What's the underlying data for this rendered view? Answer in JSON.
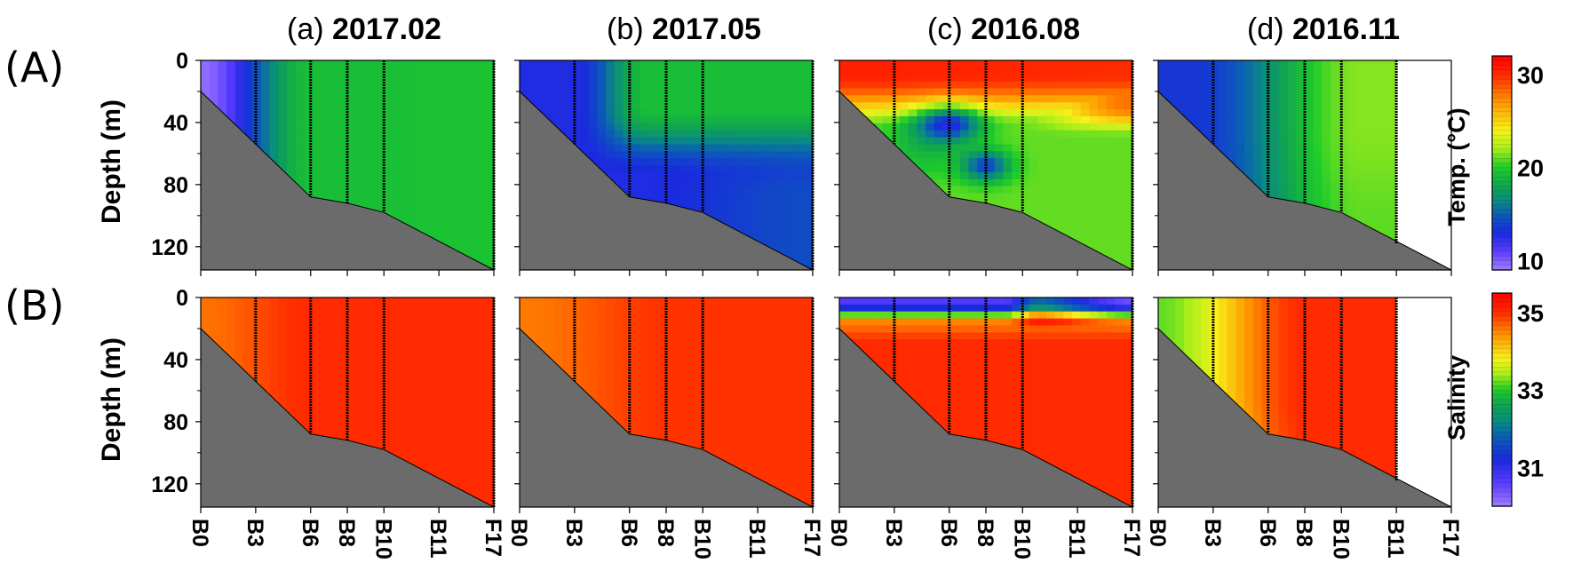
{
  "row_labels": [
    "(A)",
    "(B)"
  ],
  "panel_titles": [
    {
      "prefix": "(a) ",
      "date": "2017.02"
    },
    {
      "prefix": "(b) ",
      "date": "2017.05"
    },
    {
      "prefix": "(c) ",
      "date": "2016.08"
    },
    {
      "prefix": "(d) ",
      "date": "2016.11"
    }
  ],
  "chart_data": {
    "type": "heatmap",
    "ylabel": "Depth (m)",
    "ylim": [
      0,
      135
    ],
    "yticks": [
      0,
      40,
      80,
      120
    ],
    "y_inverted": true,
    "stations": [
      "B0",
      "B3",
      "B6",
      "B8",
      "B10",
      "B11",
      "F17"
    ],
    "station_index": [
      0,
      3,
      6,
      8,
      10,
      13,
      16
    ],
    "bottom_depth_profile": [
      {
        "x": 0,
        "depth": 20
      },
      {
        "x": 3,
        "depth": 54
      },
      {
        "x": 6,
        "depth": 88
      },
      {
        "x": 8,
        "depth": 92
      },
      {
        "x": 10,
        "depth": 98
      },
      {
        "x": 16,
        "depth": 138
      }
    ],
    "colorbars": [
      {
        "label": "Temp. (°C)",
        "range": [
          9,
          32
        ],
        "ticks": [
          10,
          20,
          30
        ]
      },
      {
        "label": "Salinity",
        "range": [
          30,
          35.5
        ],
        "ticks": [
          31,
          33,
          35
        ]
      }
    ],
    "panels": [
      {
        "row": "A",
        "variable": "Temp.",
        "period": "2017.02",
        "cast_stations": [
          3,
          6,
          8,
          10,
          16
        ],
        "data_extent_x": 16,
        "notes": "cold (about 10-13) inshore near B0-B3, about 19-20 offshore"
      },
      {
        "row": "A",
        "variable": "Temp.",
        "period": "2017.05",
        "cast_stations": [
          3,
          6,
          8,
          10,
          16
        ],
        "data_extent_x": 16,
        "notes": "about 14 inshore, about 20 near-surface offshore, about 15 at depth"
      },
      {
        "row": "A",
        "variable": "Temp.",
        "period": "2016.08",
        "cast_stations": [
          3,
          6,
          8,
          10,
          16
        ],
        "data_extent_x": 16,
        "notes": "about 30 surface, cold cores about 13 at B6 40 m and B8 70 m, about 21 deep offshore"
      },
      {
        "row": "A",
        "variable": "Temp.",
        "period": "2016.11",
        "cast_stations": [
          3,
          6,
          8,
          10,
          13
        ],
        "data_extent_x": 13,
        "notes": "about 14 inshore rising to about 22 offshore; no data beyond B11"
      },
      {
        "row": "B",
        "variable": "Salinity",
        "period": "2017.02",
        "cast_stations": [
          3,
          6,
          8,
          10,
          16
        ],
        "data_extent_x": 16,
        "notes": "about 34.7-35 throughout"
      },
      {
        "row": "B",
        "variable": "Salinity",
        "period": "2017.05",
        "cast_stations": [
          3,
          6,
          8,
          10,
          16
        ],
        "data_extent_x": 16,
        "notes": "about 34.6-35 throughout"
      },
      {
        "row": "B",
        "variable": "Salinity",
        "period": "2016.08",
        "cast_stations": [
          3,
          6,
          8,
          10,
          16
        ],
        "data_extent_x": 16,
        "notes": "low-salinity surface layer (about 31-32) down to about 10 m, about 34.5-35 below"
      },
      {
        "row": "B",
        "variable": "Salinity",
        "period": "2016.11",
        "cast_stations": [
          3,
          6,
          8,
          10,
          13
        ],
        "data_extent_x": 13,
        "notes": "about 33 inshore rising to about 35 offshore; no data beyond B11"
      }
    ]
  },
  "colors": {
    "seafloor": "#6b6b6b",
    "cast_line": "#000000",
    "frame": "#000000"
  },
  "temp_scale": [
    [
      9,
      "#a07cff"
    ],
    [
      11,
      "#5a3cff"
    ],
    [
      13,
      "#1a2adf"
    ],
    [
      15,
      "#0a5fb5"
    ],
    [
      16.5,
      "#0a8c80"
    ],
    [
      18,
      "#10a450"
    ],
    [
      20,
      "#1ecb2a"
    ],
    [
      22,
      "#a8ee1a"
    ],
    [
      24,
      "#f7f21a"
    ],
    [
      27,
      "#ff9600"
    ],
    [
      30,
      "#ff2a00"
    ],
    [
      32,
      "#ff0000"
    ]
  ],
  "sal_scale": [
    [
      30,
      "#a07cff"
    ],
    [
      30.6,
      "#5a3cff"
    ],
    [
      31.2,
      "#1a2adf"
    ],
    [
      31.8,
      "#0a5fb5"
    ],
    [
      32.2,
      "#0a8c80"
    ],
    [
      32.6,
      "#10a450"
    ],
    [
      33,
      "#1ecb2a"
    ],
    [
      33.4,
      "#a8ee1a"
    ],
    [
      33.8,
      "#f7f21a"
    ],
    [
      34.4,
      "#ff9600"
    ],
    [
      35,
      "#ff2a00"
    ],
    [
      35.5,
      "#ff0000"
    ]
  ]
}
